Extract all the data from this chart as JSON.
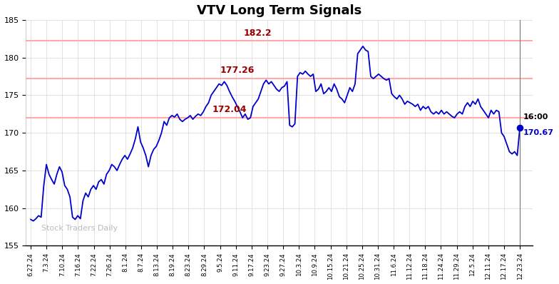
{
  "title": "VTV Long Term Signals",
  "background_color": "#ffffff",
  "plot_bg_color": "#ffffff",
  "line_color": "#0000cc",
  "line_width": 1.5,
  "hline_levels": [
    182.2,
    177.26,
    172.04
  ],
  "hline_color": "#ffaaaa",
  "hline_labels": [
    "182.2",
    "177.26",
    "172.04"
  ],
  "hline_label_color": "#990000",
  "watermark": "Stock Traders Daily",
  "watermark_color": "#bbbbbb",
  "last_price": 170.67,
  "last_time_label": "16:00",
  "last_price_color": "#0000cc",
  "last_label_color": "#000000",
  "grid_color": "#dddddd",
  "ylim": [
    155,
    185
  ],
  "yticks": [
    155,
    160,
    165,
    170,
    175,
    180,
    185
  ],
  "x_labels": [
    "6.27.24",
    "7.3.24",
    "7.10.24",
    "7.16.24",
    "7.22.24",
    "7.26.24",
    "8.1.24",
    "8.7.24",
    "8.13.24",
    "8.19.24",
    "8.23.24",
    "8.29.24",
    "9.5.24",
    "9.11.24",
    "9.17.24",
    "9.23.24",
    "9.27.24",
    "10.3.24",
    "10.9.24",
    "10.15.24",
    "10.21.24",
    "10.25.24",
    "10.31.24",
    "11.6.24",
    "11.12.24",
    "11.18.24",
    "11.24.24",
    "11.29.24",
    "12.5.24",
    "12.11.24",
    "12.17.24",
    "12.23.24"
  ],
  "prices": [
    158.5,
    158.3,
    158.6,
    159.0,
    158.8,
    163.0,
    165.8,
    164.5,
    163.8,
    163.2,
    164.5,
    165.5,
    164.8,
    163.0,
    162.5,
    161.5,
    158.8,
    158.5,
    159.0,
    158.6,
    161.0,
    162.0,
    161.5,
    162.5,
    163.0,
    162.5,
    163.5,
    163.8,
    163.2,
    164.5,
    165.0,
    165.8,
    165.5,
    165.0,
    165.8,
    166.5,
    167.0,
    166.5,
    167.2,
    168.0,
    169.2,
    170.8,
    168.8,
    168.0,
    167.0,
    165.5,
    167.0,
    167.8,
    168.2,
    169.0,
    170.0,
    171.5,
    171.0,
    172.0,
    172.3,
    172.1,
    172.5,
    171.8,
    171.5,
    171.8,
    172.0,
    172.3,
    171.8,
    172.2,
    172.5,
    172.3,
    172.8,
    173.5,
    174.0,
    175.0,
    175.5,
    176.0,
    176.5,
    176.3,
    176.8,
    176.3,
    175.5,
    174.8,
    174.2,
    173.5,
    172.8,
    172.0,
    172.5,
    171.8,
    172.0,
    173.5,
    174.0,
    174.5,
    175.5,
    176.5,
    177.0,
    176.5,
    176.8,
    176.3,
    175.8,
    175.5,
    176.0,
    176.2,
    176.8,
    171.0,
    170.8,
    171.2,
    177.5,
    178.0,
    177.8,
    178.2,
    177.8,
    177.5,
    177.8,
    175.5,
    175.8,
    176.5,
    175.2,
    175.5,
    176.0,
    175.5,
    176.5,
    175.8,
    174.8,
    174.5,
    174.0,
    175.0,
    176.0,
    175.5,
    176.5,
    180.5,
    181.0,
    181.5,
    181.0,
    180.8,
    177.5,
    177.2,
    177.5,
    177.8,
    177.5,
    177.2,
    177.0,
    177.2,
    175.2,
    174.8,
    174.5,
    175.0,
    174.5,
    173.8,
    174.2,
    174.0,
    173.8,
    173.5,
    173.8,
    173.0,
    173.5,
    173.2,
    173.5,
    172.8,
    172.5,
    172.8,
    172.5,
    173.0,
    172.5,
    172.8,
    172.5,
    172.2,
    172.0,
    172.5,
    172.8,
    172.5,
    173.5,
    174.0,
    173.5,
    174.2,
    173.8,
    174.5,
    173.5,
    173.0,
    172.5,
    172.0,
    173.0,
    172.5,
    173.0,
    172.8,
    170.0,
    169.5,
    168.5,
    167.5,
    167.2,
    167.5,
    167.0,
    170.67
  ]
}
